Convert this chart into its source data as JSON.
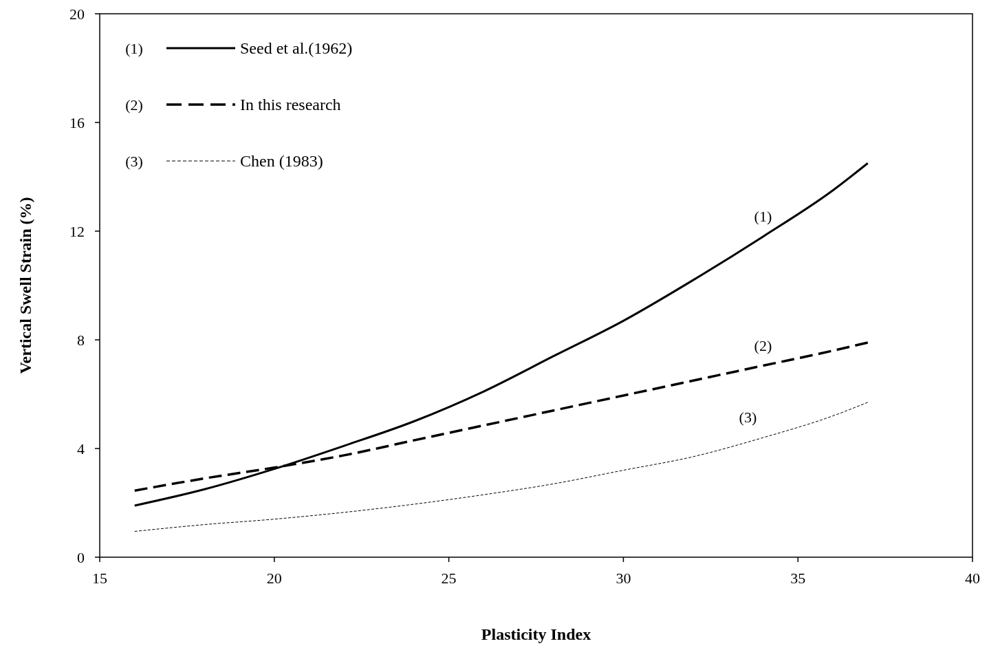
{
  "chart_data": {
    "type": "line",
    "xlabel": "Plasticity Index",
    "ylabel": "Vertical Swell Strain (%)",
    "x": [
      16,
      18,
      20,
      22,
      24,
      26,
      28,
      30,
      32,
      34,
      36,
      37
    ],
    "series": [
      {
        "name": "Seed et al.(1962)",
        "color": "#000000",
        "line_style": "solid",
        "values": [
          1.9,
          2.5,
          3.25,
          4.1,
          5.0,
          6.1,
          7.4,
          8.7,
          10.2,
          11.8,
          13.5,
          14.5
        ]
      },
      {
        "name": "In this research",
        "color": "#000000",
        "line_style": "dashed",
        "values": [
          2.45,
          2.9,
          3.3,
          3.75,
          4.3,
          4.85,
          5.4,
          5.95,
          6.5,
          7.05,
          7.6,
          7.9
        ]
      },
      {
        "name": "Chen (1983)",
        "color": "#000000",
        "line_style": "dotted",
        "values": [
          0.95,
          1.2,
          1.4,
          1.65,
          1.95,
          2.3,
          2.7,
          3.2,
          3.7,
          4.4,
          5.2,
          5.7
        ]
      }
    ],
    "annotations": [
      "(1)",
      "(2)",
      "(3)"
    ],
    "xlim": [
      15,
      40
    ],
    "xticks": [
      15,
      20,
      25,
      30,
      35,
      40
    ],
    "ylim": [
      0,
      20
    ],
    "yticks": [
      0,
      4,
      8,
      12,
      16,
      20
    ],
    "grid": false,
    "legend": "top left",
    "marker": "none"
  }
}
